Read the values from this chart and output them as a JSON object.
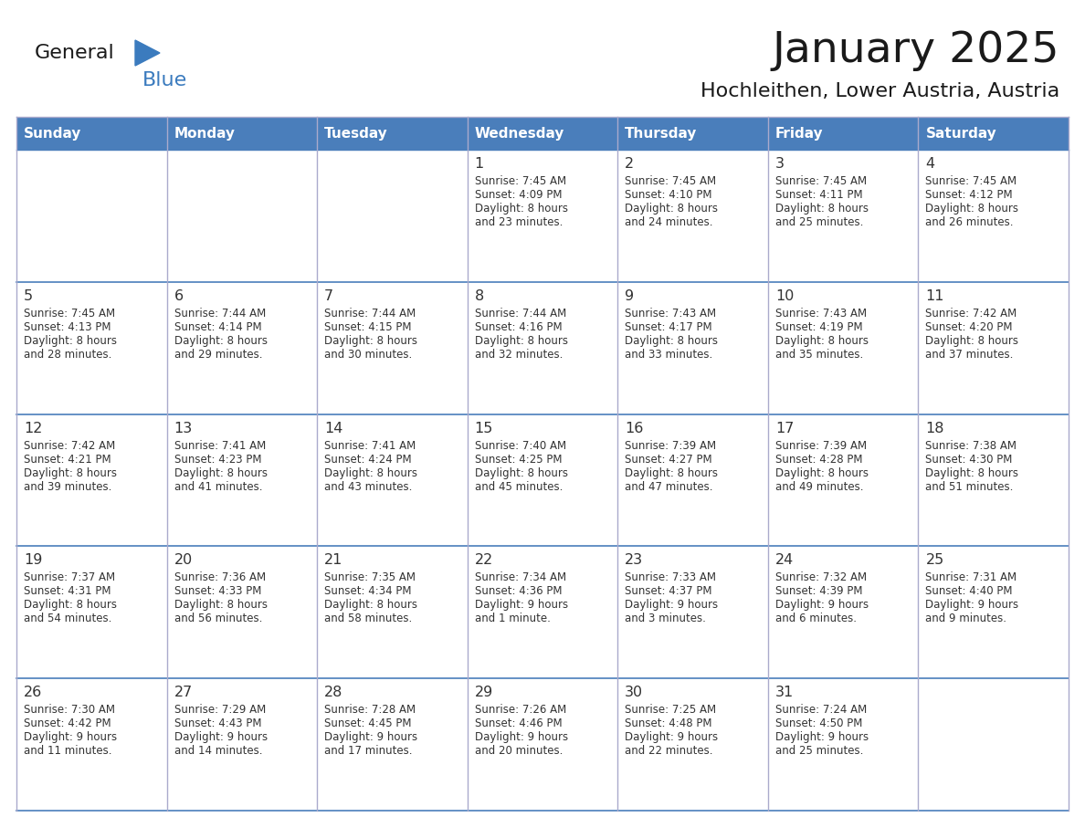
{
  "title": "January 2025",
  "subtitle": "Hochleithen, Lower Austria, Austria",
  "header_bg": "#4A7EBB",
  "header_text_color": "#FFFFFF",
  "day_names": [
    "Sunday",
    "Monday",
    "Tuesday",
    "Wednesday",
    "Thursday",
    "Friday",
    "Saturday"
  ],
  "row_bg": "#FFFFFF",
  "cell_text_color": "#333333",
  "grid_color": "#5577AA",
  "separator_color": "#4A7EBB",
  "title_color": "#1A1A1A",
  "subtitle_color": "#1A1A1A",
  "logo_general_color": "#1A1A1A",
  "logo_blue_color": "#3B7BBE",
  "weeks": [
    {
      "days": [
        {
          "day": null,
          "sunrise": null,
          "sunset": null,
          "daylight_l1": null,
          "daylight_l2": null
        },
        {
          "day": null,
          "sunrise": null,
          "sunset": null,
          "daylight_l1": null,
          "daylight_l2": null
        },
        {
          "day": null,
          "sunrise": null,
          "sunset": null,
          "daylight_l1": null,
          "daylight_l2": null
        },
        {
          "day": "1",
          "sunrise": "Sunrise: 7:45 AM",
          "sunset": "Sunset: 4:09 PM",
          "daylight_l1": "Daylight: 8 hours",
          "daylight_l2": "and 23 minutes."
        },
        {
          "day": "2",
          "sunrise": "Sunrise: 7:45 AM",
          "sunset": "Sunset: 4:10 PM",
          "daylight_l1": "Daylight: 8 hours",
          "daylight_l2": "and 24 minutes."
        },
        {
          "day": "3",
          "sunrise": "Sunrise: 7:45 AM",
          "sunset": "Sunset: 4:11 PM",
          "daylight_l1": "Daylight: 8 hours",
          "daylight_l2": "and 25 minutes."
        },
        {
          "day": "4",
          "sunrise": "Sunrise: 7:45 AM",
          "sunset": "Sunset: 4:12 PM",
          "daylight_l1": "Daylight: 8 hours",
          "daylight_l2": "and 26 minutes."
        }
      ]
    },
    {
      "days": [
        {
          "day": "5",
          "sunrise": "Sunrise: 7:45 AM",
          "sunset": "Sunset: 4:13 PM",
          "daylight_l1": "Daylight: 8 hours",
          "daylight_l2": "and 28 minutes."
        },
        {
          "day": "6",
          "sunrise": "Sunrise: 7:44 AM",
          "sunset": "Sunset: 4:14 PM",
          "daylight_l1": "Daylight: 8 hours",
          "daylight_l2": "and 29 minutes."
        },
        {
          "day": "7",
          "sunrise": "Sunrise: 7:44 AM",
          "sunset": "Sunset: 4:15 PM",
          "daylight_l1": "Daylight: 8 hours",
          "daylight_l2": "and 30 minutes."
        },
        {
          "day": "8",
          "sunrise": "Sunrise: 7:44 AM",
          "sunset": "Sunset: 4:16 PM",
          "daylight_l1": "Daylight: 8 hours",
          "daylight_l2": "and 32 minutes."
        },
        {
          "day": "9",
          "sunrise": "Sunrise: 7:43 AM",
          "sunset": "Sunset: 4:17 PM",
          "daylight_l1": "Daylight: 8 hours",
          "daylight_l2": "and 33 minutes."
        },
        {
          "day": "10",
          "sunrise": "Sunrise: 7:43 AM",
          "sunset": "Sunset: 4:19 PM",
          "daylight_l1": "Daylight: 8 hours",
          "daylight_l2": "and 35 minutes."
        },
        {
          "day": "11",
          "sunrise": "Sunrise: 7:42 AM",
          "sunset": "Sunset: 4:20 PM",
          "daylight_l1": "Daylight: 8 hours",
          "daylight_l2": "and 37 minutes."
        }
      ]
    },
    {
      "days": [
        {
          "day": "12",
          "sunrise": "Sunrise: 7:42 AM",
          "sunset": "Sunset: 4:21 PM",
          "daylight_l1": "Daylight: 8 hours",
          "daylight_l2": "and 39 minutes."
        },
        {
          "day": "13",
          "sunrise": "Sunrise: 7:41 AM",
          "sunset": "Sunset: 4:23 PM",
          "daylight_l1": "Daylight: 8 hours",
          "daylight_l2": "and 41 minutes."
        },
        {
          "day": "14",
          "sunrise": "Sunrise: 7:41 AM",
          "sunset": "Sunset: 4:24 PM",
          "daylight_l1": "Daylight: 8 hours",
          "daylight_l2": "and 43 minutes."
        },
        {
          "day": "15",
          "sunrise": "Sunrise: 7:40 AM",
          "sunset": "Sunset: 4:25 PM",
          "daylight_l1": "Daylight: 8 hours",
          "daylight_l2": "and 45 minutes."
        },
        {
          "day": "16",
          "sunrise": "Sunrise: 7:39 AM",
          "sunset": "Sunset: 4:27 PM",
          "daylight_l1": "Daylight: 8 hours",
          "daylight_l2": "and 47 minutes."
        },
        {
          "day": "17",
          "sunrise": "Sunrise: 7:39 AM",
          "sunset": "Sunset: 4:28 PM",
          "daylight_l1": "Daylight: 8 hours",
          "daylight_l2": "and 49 minutes."
        },
        {
          "day": "18",
          "sunrise": "Sunrise: 7:38 AM",
          "sunset": "Sunset: 4:30 PM",
          "daylight_l1": "Daylight: 8 hours",
          "daylight_l2": "and 51 minutes."
        }
      ]
    },
    {
      "days": [
        {
          "day": "19",
          "sunrise": "Sunrise: 7:37 AM",
          "sunset": "Sunset: 4:31 PM",
          "daylight_l1": "Daylight: 8 hours",
          "daylight_l2": "and 54 minutes."
        },
        {
          "day": "20",
          "sunrise": "Sunrise: 7:36 AM",
          "sunset": "Sunset: 4:33 PM",
          "daylight_l1": "Daylight: 8 hours",
          "daylight_l2": "and 56 minutes."
        },
        {
          "day": "21",
          "sunrise": "Sunrise: 7:35 AM",
          "sunset": "Sunset: 4:34 PM",
          "daylight_l1": "Daylight: 8 hours",
          "daylight_l2": "and 58 minutes."
        },
        {
          "day": "22",
          "sunrise": "Sunrise: 7:34 AM",
          "sunset": "Sunset: 4:36 PM",
          "daylight_l1": "Daylight: 9 hours",
          "daylight_l2": "and 1 minute."
        },
        {
          "day": "23",
          "sunrise": "Sunrise: 7:33 AM",
          "sunset": "Sunset: 4:37 PM",
          "daylight_l1": "Daylight: 9 hours",
          "daylight_l2": "and 3 minutes."
        },
        {
          "day": "24",
          "sunrise": "Sunrise: 7:32 AM",
          "sunset": "Sunset: 4:39 PM",
          "daylight_l1": "Daylight: 9 hours",
          "daylight_l2": "and 6 minutes."
        },
        {
          "day": "25",
          "sunrise": "Sunrise: 7:31 AM",
          "sunset": "Sunset: 4:40 PM",
          "daylight_l1": "Daylight: 9 hours",
          "daylight_l2": "and 9 minutes."
        }
      ]
    },
    {
      "days": [
        {
          "day": "26",
          "sunrise": "Sunrise: 7:30 AM",
          "sunset": "Sunset: 4:42 PM",
          "daylight_l1": "Daylight: 9 hours",
          "daylight_l2": "and 11 minutes."
        },
        {
          "day": "27",
          "sunrise": "Sunrise: 7:29 AM",
          "sunset": "Sunset: 4:43 PM",
          "daylight_l1": "Daylight: 9 hours",
          "daylight_l2": "and 14 minutes."
        },
        {
          "day": "28",
          "sunrise": "Sunrise: 7:28 AM",
          "sunset": "Sunset: 4:45 PM",
          "daylight_l1": "Daylight: 9 hours",
          "daylight_l2": "and 17 minutes."
        },
        {
          "day": "29",
          "sunrise": "Sunrise: 7:26 AM",
          "sunset": "Sunset: 4:46 PM",
          "daylight_l1": "Daylight: 9 hours",
          "daylight_l2": "and 20 minutes."
        },
        {
          "day": "30",
          "sunrise": "Sunrise: 7:25 AM",
          "sunset": "Sunset: 4:48 PM",
          "daylight_l1": "Daylight: 9 hours",
          "daylight_l2": "and 22 minutes."
        },
        {
          "day": "31",
          "sunrise": "Sunrise: 7:24 AM",
          "sunset": "Sunset: 4:50 PM",
          "daylight_l1": "Daylight: 9 hours",
          "daylight_l2": "and 25 minutes."
        },
        {
          "day": null,
          "sunrise": null,
          "sunset": null,
          "daylight_l1": null,
          "daylight_l2": null
        }
      ]
    }
  ]
}
